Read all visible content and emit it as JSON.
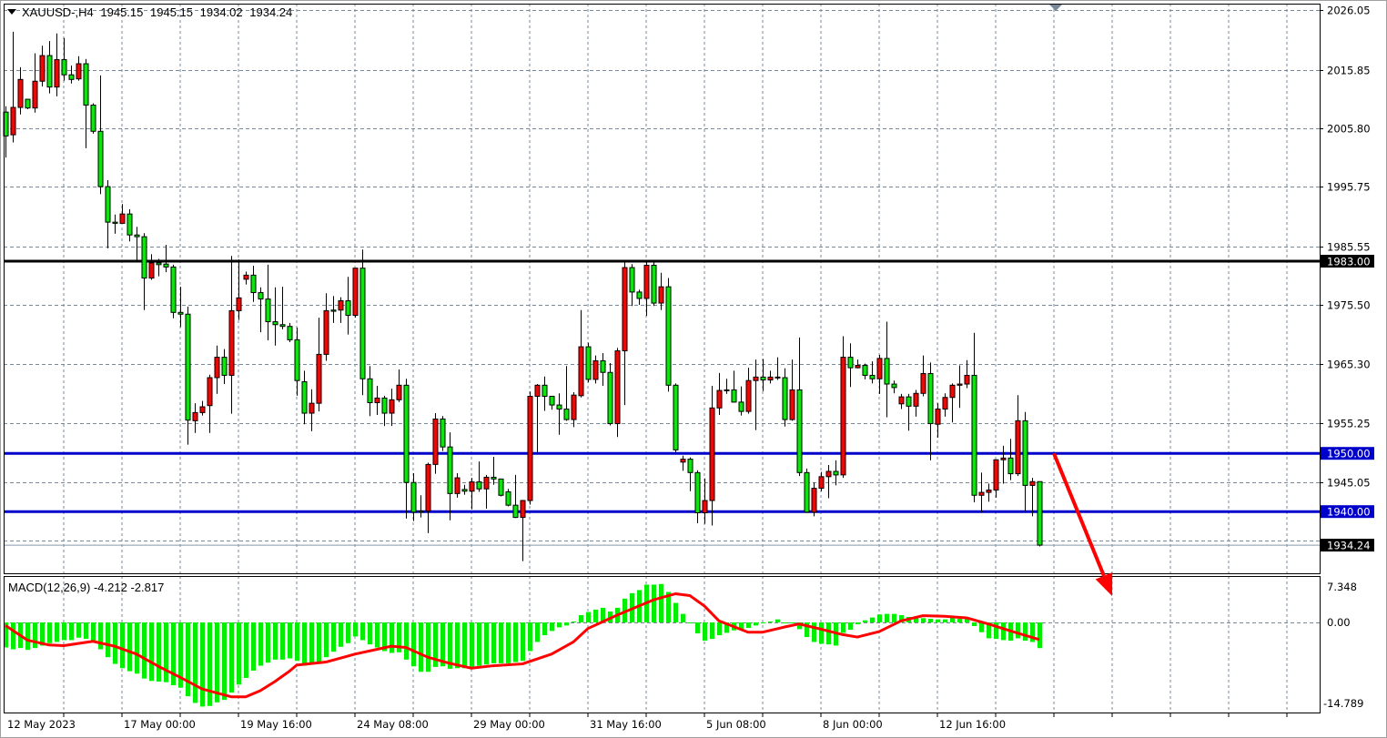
{
  "header": {
    "symbol": "XAUUSD-,H4",
    "open": "1945.15",
    "high": "1945.15",
    "low": "1934.02",
    "close": "1934.24"
  },
  "indicator": {
    "name": "MACD(12,26,9)",
    "main_value": "-4.212",
    "signal_value": "-2.817"
  },
  "colors": {
    "up_candle": "#ff0000",
    "down_candle": "#00ee00",
    "resistance_line": "#000000",
    "support_lines": "#0000cc",
    "signal_line": "#ff0000",
    "histogram": "#00ee00",
    "arrow": "#ff0000",
    "grid": "#778899"
  },
  "chart_data": {
    "type": "candlestick",
    "title": "XAUUSD-,H4",
    "price_axis": {
      "range": [
        1929.5,
        2027.5
      ],
      "tick_labels": [
        "2026.05",
        "2015.85",
        "2005.80",
        "1995.75",
        "1985.55",
        "1975.50",
        "1965.30",
        "1955.25",
        "1945.05"
      ]
    },
    "time_labels": [
      {
        "bar": 1,
        "label": "12 May 2023"
      },
      {
        "bar": 17,
        "label": "17 May 00:00"
      },
      {
        "bar": 33,
        "label": "19 May 16:00"
      },
      {
        "bar": 49,
        "label": "24 May 08:00"
      },
      {
        "bar": 65,
        "label": "29 May 00:00"
      },
      {
        "bar": 81,
        "label": "31 May 16:00"
      },
      {
        "bar": 97,
        "label": "5 Jun 08:00"
      },
      {
        "bar": 113,
        "label": "8 Jun 00:00"
      },
      {
        "bar": 129,
        "label": "12 Jun 16:00"
      }
    ],
    "grid": true,
    "horizontal_lines": [
      {
        "price": 1983.0,
        "label": "1983.00",
        "color": "#000000"
      },
      {
        "price": 1950.0,
        "label": "1950.00",
        "color": "#0000cc"
      },
      {
        "price": 1940.0,
        "label": "1940.00",
        "color": "#0000cc"
      }
    ],
    "bid_line": {
      "price": 1934.24,
      "label": "1934.24"
    },
    "arrow": {
      "from": {
        "bar": 145,
        "price": 1950.0
      },
      "to": {
        "bar": 153,
        "price": 1925.5
      }
    },
    "ohlc_columns": [
      "open",
      "high",
      "low",
      "close"
    ],
    "candles": [
      [
        2008.6,
        2009.6,
        2000.8,
        2004.5
      ],
      [
        2004.7,
        2022.4,
        2003.4,
        2009.4
      ],
      [
        2009.4,
        2016.3,
        2008.2,
        2014.2
      ],
      [
        2010.8,
        2010.8,
        2009.1,
        2009.3
      ],
      [
        2009.3,
        2018.7,
        2008.5,
        2013.9
      ],
      [
        2013.9,
        2020.0,
        2013.0,
        2018.3
      ],
      [
        2018.3,
        2020.8,
        2011.8,
        2012.9
      ],
      [
        2012.9,
        2022.1,
        2011.3,
        2017.6
      ],
      [
        2017.6,
        2021.3,
        2014.0,
        2015.0
      ],
      [
        2015.0,
        2016.6,
        2013.5,
        2014.2
      ],
      [
        2014.3,
        2018.2,
        2014.0,
        2016.9
      ],
      [
        2016.9,
        2017.7,
        2002.4,
        2009.8
      ],
      [
        2009.8,
        2010.1,
        2004.9,
        2005.3
      ],
      [
        2005.3,
        2014.9,
        1994.5,
        1995.8
      ],
      [
        1995.8,
        1996.9,
        1985.2,
        1989.7
      ],
      [
        1989.7,
        1991.0,
        1987.7,
        1989.5
      ],
      [
        1989.5,
        1992.8,
        1989.5,
        1991.1
      ],
      [
        1991.1,
        1991.9,
        1986.4,
        1987.5
      ],
      [
        1987.5,
        1988.9,
        1983.0,
        1987.2
      ],
      [
        1987.2,
        1987.8,
        1974.6,
        1980.1
      ],
      [
        1980.1,
        1984.2,
        1979.8,
        1982.7
      ],
      [
        1982.7,
        1983.4,
        1980.4,
        1982.4
      ],
      [
        1982.5,
        1985.8,
        1981.1,
        1982.0
      ],
      [
        1982.0,
        1982.4,
        1973.2,
        1974.2
      ],
      [
        1974.2,
        1978.6,
        1971.7,
        1973.9
      ],
      [
        1973.9,
        1975.2,
        1951.5,
        1955.7
      ],
      [
        1955.6,
        1958.6,
        1953.5,
        1957.0
      ],
      [
        1957.0,
        1959.0,
        1956.5,
        1958.0
      ],
      [
        1958.2,
        1963.5,
        1953.5,
        1963.0
      ],
      [
        1963.0,
        1968.5,
        1960.2,
        1966.5
      ],
      [
        1966.5,
        1967.9,
        1961.9,
        1963.4
      ],
      [
        1963.4,
        1983.9,
        1956.8,
        1974.5
      ],
      [
        1974.5,
        1983.3,
        1972.9,
        1976.7
      ],
      [
        1979.9,
        1981.2,
        1979.0,
        1980.6
      ],
      [
        1980.6,
        1982.2,
        1976.0,
        1977.6
      ],
      [
        1977.6,
        1978.5,
        1970.8,
        1976.5
      ],
      [
        1976.5,
        1982.4,
        1969.4,
        1972.6
      ],
      [
        1972.6,
        1978.5,
        1968.5,
        1972.1
      ],
      [
        1972.1,
        1978.6,
        1971.3,
        1971.8
      ],
      [
        1971.8,
        1972.4,
        1969.1,
        1969.5
      ],
      [
        1969.5,
        1971.6,
        1959.9,
        1962.5
      ],
      [
        1962.3,
        1964.2,
        1955.0,
        1956.9
      ],
      [
        1956.9,
        1961.0,
        1953.8,
        1958.6
      ],
      [
        1958.6,
        1973.3,
        1957.2,
        1967.0
      ],
      [
        1967.0,
        1977.5,
        1965.9,
        1974.5
      ],
      [
        1974.6,
        1977.0,
        1972.4,
        1974.4
      ],
      [
        1974.6,
        1976.8,
        1972.4,
        1976.2
      ],
      [
        1976.2,
        1980.3,
        1970.4,
        1973.7
      ],
      [
        1973.7,
        1981.8,
        1973.3,
        1981.8
      ],
      [
        1981.8,
        1985.0,
        1960.0,
        1962.8
      ],
      [
        1962.8,
        1965.0,
        1956.4,
        1958.7
      ],
      [
        1958.7,
        1961.6,
        1956.6,
        1959.5
      ],
      [
        1959.5,
        1959.9,
        1954.7,
        1956.9
      ],
      [
        1956.9,
        1961.1,
        1954.7,
        1959.2
      ],
      [
        1959.2,
        1964.4,
        1958.8,
        1961.7
      ],
      [
        1961.7,
        1962.8,
        1938.8,
        1945.0
      ],
      [
        1945.0,
        1946.6,
        1938.4,
        1939.9
      ],
      [
        1940.1,
        1942.8,
        1939.0,
        1939.9
      ],
      [
        1940.1,
        1948.4,
        1936.3,
        1948.1
      ],
      [
        1948.1,
        1956.9,
        1946.5,
        1955.9
      ],
      [
        1955.9,
        1956.4,
        1950.4,
        1951.1
      ],
      [
        1951.1,
        1953.6,
        1938.5,
        1943.1
      ],
      [
        1943.1,
        1946.6,
        1942.4,
        1945.8
      ],
      [
        1943.8,
        1944.6,
        1942.9,
        1943.5
      ],
      [
        1943.5,
        1945.8,
        1940.4,
        1945.1
      ],
      [
        1945.1,
        1948.6,
        1943.4,
        1943.9
      ],
      [
        1943.9,
        1946.3,
        1940.5,
        1945.9
      ],
      [
        1945.9,
        1949.4,
        1944.6,
        1945.6
      ],
      [
        1945.6,
        1945.6,
        1942.6,
        1942.8
      ],
      [
        1943.4,
        1943.9,
        1940.9,
        1941.1
      ],
      [
        1941.1,
        1946.3,
        1938.9,
        1939.0
      ],
      [
        1939.0,
        1942.0,
        1931.5,
        1941.9
      ],
      [
        1941.9,
        1960.6,
        1941.2,
        1959.8
      ],
      [
        1959.8,
        1961.9,
        1950.2,
        1961.7
      ],
      [
        1961.7,
        1963.2,
        1957.3,
        1959.8
      ],
      [
        1959.8,
        1959.8,
        1957.5,
        1958.3
      ],
      [
        1958.3,
        1960.3,
        1953.2,
        1957.6
      ],
      [
        1957.6,
        1965.0,
        1955.6,
        1955.8
      ],
      [
        1955.8,
        1960.5,
        1954.5,
        1960.0
      ],
      [
        1959.9,
        1974.6,
        1959.6,
        1968.3
      ],
      [
        1968.3,
        1969.0,
        1962.2,
        1962.7
      ],
      [
        1962.7,
        1966.8,
        1962.0,
        1965.9
      ],
      [
        1965.9,
        1967.2,
        1961.6,
        1963.9
      ],
      [
        1963.9,
        1965.5,
        1954.8,
        1955.1
      ],
      [
        1955.1,
        1968.1,
        1952.8,
        1967.6
      ],
      [
        1967.6,
        1982.8,
        1958.3,
        1981.9
      ],
      [
        1981.9,
        1982.5,
        1975.3,
        1977.7
      ],
      [
        1977.7,
        1978.1,
        1975.5,
        1976.6
      ],
      [
        1976.6,
        1982.8,
        1973.6,
        1982.3
      ],
      [
        1982.3,
        1982.8,
        1975.3,
        1975.8
      ],
      [
        1975.8,
        1981.0,
        1974.6,
        1978.6
      ],
      [
        1978.6,
        1980.1,
        1960.6,
        1961.7
      ],
      [
        1961.7,
        1962.0,
        1950.2,
        1950.6
      ],
      [
        1948.5,
        1949.6,
        1947.0,
        1949.0
      ],
      [
        1949.0,
        1949.3,
        1943.5,
        1946.7
      ],
      [
        1946.7,
        1947.1,
        1938.0,
        1939.8
      ],
      [
        1939.8,
        1945.7,
        1937.9,
        1941.9
      ],
      [
        1941.9,
        1961.6,
        1937.6,
        1957.8
      ],
      [
        1957.8,
        1963.8,
        1956.6,
        1960.8
      ],
      [
        1960.8,
        1962.8,
        1960.2,
        1960.9
      ],
      [
        1960.9,
        1964.2,
        1958.7,
        1958.8
      ],
      [
        1958.8,
        1961.5,
        1956.5,
        1957.2
      ],
      [
        1957.2,
        1964.7,
        1956.8,
        1962.5
      ],
      [
        1962.5,
        1966.1,
        1954.0,
        1963.1
      ],
      [
        1963.1,
        1966.2,
        1960.7,
        1962.6
      ],
      [
        1962.6,
        1964.2,
        1962.0,
        1963.1
      ],
      [
        1963.1,
        1966.5,
        1962.6,
        1963.0
      ],
      [
        1963.0,
        1964.6,
        1954.6,
        1955.8
      ],
      [
        1955.8,
        1966.1,
        1955.6,
        1960.9
      ],
      [
        1960.9,
        1969.9,
        1946.1,
        1946.7
      ],
      [
        1946.7,
        1947.4,
        1939.8,
        1939.9
      ],
      [
        1939.9,
        1945.0,
        1939.2,
        1944.0
      ],
      [
        1944.0,
        1946.8,
        1943.5,
        1946.0
      ],
      [
        1946.0,
        1948.0,
        1942.3,
        1946.9
      ],
      [
        1946.9,
        1948.8,
        1944.5,
        1946.3
      ],
      [
        1946.3,
        1970.1,
        1945.8,
        1966.5
      ],
      [
        1966.5,
        1968.9,
        1961.4,
        1964.7
      ],
      [
        1964.7,
        1966.1,
        1964.6,
        1965.1
      ],
      [
        1965.1,
        1965.4,
        1962.7,
        1963.4
      ],
      [
        1963.4,
        1965.8,
        1962.0,
        1962.8
      ],
      [
        1962.8,
        1966.9,
        1960.2,
        1966.3
      ],
      [
        1966.3,
        1972.6,
        1956.2,
        1961.9
      ],
      [
        1961.9,
        1962.5,
        1960.3,
        1961.3
      ],
      [
        1958.5,
        1960.2,
        1957.6,
        1959.7
      ],
      [
        1959.7,
        1960.2,
        1953.9,
        1958.1
      ],
      [
        1958.1,
        1960.9,
        1956.3,
        1960.3
      ],
      [
        1960.3,
        1966.8,
        1959.8,
        1963.7
      ],
      [
        1963.7,
        1965.6,
        1948.8,
        1955.1
      ],
      [
        1955.0,
        1958.6,
        1952.7,
        1957.6
      ],
      [
        1957.6,
        1960.3,
        1956.3,
        1959.6
      ],
      [
        1959.6,
        1962.0,
        1955.3,
        1961.7
      ],
      [
        1961.7,
        1965.1,
        1957.8,
        1961.9
      ],
      [
        1961.9,
        1966.0,
        1961.2,
        1963.4
      ],
      [
        1963.4,
        1970.7,
        1941.6,
        1942.8
      ],
      [
        1942.8,
        1946.7,
        1939.9,
        1943.3
      ],
      [
        1943.3,
        1944.8,
        1941.7,
        1943.7
      ],
      [
        1943.7,
        1948.9,
        1942.4,
        1948.9
      ],
      [
        1948.9,
        1951.3,
        1944.8,
        1949.2
      ],
      [
        1949.2,
        1952.5,
        1945.4,
        1946.5
      ],
      [
        1946.5,
        1960.0,
        1946.1,
        1955.6
      ],
      [
        1955.6,
        1957.1,
        1940.1,
        1944.5
      ],
      [
        1944.5,
        1945.8,
        1939.2,
        1945.15
      ],
      [
        1945.15,
        1945.15,
        1934.02,
        1934.24
      ]
    ],
    "macd": {
      "axis": {
        "range": [
          -14.789,
          7.348
        ],
        "tick_labels": [
          "7.348",
          "0.00",
          "-14.789"
        ]
      },
      "histogram": [
        -4.1,
        -4.4,
        -4.2,
        -4.5,
        -4.2,
        -3.8,
        -3.4,
        -3.2,
        -2.9,
        -2.9,
        -2.5,
        -2.7,
        -3.2,
        -4.4,
        -5.7,
        -6.8,
        -7.5,
        -8.0,
        -8.4,
        -9.2,
        -9.6,
        -9.7,
        -9.8,
        -10.3,
        -10.7,
        -12.1,
        -13.2,
        -13.8,
        -13.7,
        -13.1,
        -12.7,
        -11.5,
        -10.2,
        -9.1,
        -7.9,
        -7.1,
        -6.6,
        -6.1,
        -6.1,
        -5.9,
        -6.3,
        -7.1,
        -6.7,
        -6.5,
        -5.7,
        -4.8,
        -4.0,
        -3.4,
        -2.3,
        -2.9,
        -3.6,
        -4.1,
        -4.7,
        -5.0,
        -4.9,
        -6.1,
        -7.2,
        -8.1,
        -8.1,
        -7.3,
        -7.2,
        -7.6,
        -7.5,
        -7.5,
        -7.6,
        -7.1,
        -6.9,
        -6.7,
        -6.7,
        -6.7,
        -6.5,
        -6.3,
        -4.7,
        -3.2,
        -2.1,
        -1.4,
        -0.8,
        -0.5,
        0.15,
        1.2,
        1.7,
        2.1,
        2.4,
        1.8,
        2.4,
        3.9,
        4.8,
        5.3,
        6.2,
        6.2,
        6.3,
        5.0,
        3.2,
        1.4,
        -0.15,
        -1.8,
        -3.0,
        -2.7,
        -2.1,
        -1.7,
        -1.3,
        -1.2,
        -0.9,
        -0.5,
        -0.1,
        0.15,
        0.5,
        0,
        -0.1,
        -1.1,
        -2.4,
        -3.2,
        -3.5,
        -3.6,
        -3.8,
        -1.7,
        -1.2,
        -0.3,
        0.35,
        0.8,
        1.3,
        1.4,
        1.4,
        1.2,
        0.9,
        0.9,
        0.7,
        0.6,
        0.5,
        0.5,
        0.9,
        0.6,
        0.6,
        -0.6,
        -1.6,
        -2.6,
        -2.7,
        -2.9,
        -3.0,
        -2.6,
        -3.0,
        -3.2,
        -4.212
      ],
      "signal_points": [
        {
          "bar": 1,
          "value": -0.5
        },
        {
          "bar": 4,
          "value": -2.9
        },
        {
          "bar": 7,
          "value": -3.7
        },
        {
          "bar": 9,
          "value": -3.8
        },
        {
          "bar": 13,
          "value": -3.1
        },
        {
          "bar": 16,
          "value": -3.9
        },
        {
          "bar": 19,
          "value": -5.2
        },
        {
          "bar": 22,
          "value": -7.2
        },
        {
          "bar": 25,
          "value": -9.0
        },
        {
          "bar": 28,
          "value": -10.9
        },
        {
          "bar": 32,
          "value": -12.2
        },
        {
          "bar": 34,
          "value": -12.2
        },
        {
          "bar": 36,
          "value": -11.2
        },
        {
          "bar": 38,
          "value": -9.7
        },
        {
          "bar": 40,
          "value": -8.0
        },
        {
          "bar": 41,
          "value": -7.0
        },
        {
          "bar": 45,
          "value": -6.5
        },
        {
          "bar": 49,
          "value": -5.2
        },
        {
          "bar": 54,
          "value": -3.9
        },
        {
          "bar": 56,
          "value": -4.1
        },
        {
          "bar": 59,
          "value": -5.7
        },
        {
          "bar": 62,
          "value": -6.7
        },
        {
          "bar": 65,
          "value": -7.5
        },
        {
          "bar": 68,
          "value": -7.1
        },
        {
          "bar": 72,
          "value": -6.8
        },
        {
          "bar": 76,
          "value": -5.2
        },
        {
          "bar": 79,
          "value": -3.2
        },
        {
          "bar": 81,
          "value": -1.0
        },
        {
          "bar": 85,
          "value": 1.2
        },
        {
          "bar": 90,
          "value": 3.7
        },
        {
          "bar": 93,
          "value": 4.7
        },
        {
          "bar": 95,
          "value": 4.4
        },
        {
          "bar": 97,
          "value": 2.7
        },
        {
          "bar": 99,
          "value": 0.25
        },
        {
          "bar": 103,
          "value": -1.6
        },
        {
          "bar": 105,
          "value": -1.6
        },
        {
          "bar": 108,
          "value": -0.75
        },
        {
          "bar": 110,
          "value": -0.25
        },
        {
          "bar": 113,
          "value": -1.1
        },
        {
          "bar": 116,
          "value": -2.0
        },
        {
          "bar": 118,
          "value": -2.4
        },
        {
          "bar": 121,
          "value": -1.5
        },
        {
          "bar": 124,
          "value": 0.25
        },
        {
          "bar": 127,
          "value": 1.1
        },
        {
          "bar": 130,
          "value": 1.0
        },
        {
          "bar": 133,
          "value": 0.75
        },
        {
          "bar": 136,
          "value": -0.25
        },
        {
          "bar": 140,
          "value": -1.75
        },
        {
          "bar": 143,
          "value": -2.817
        }
      ]
    }
  }
}
